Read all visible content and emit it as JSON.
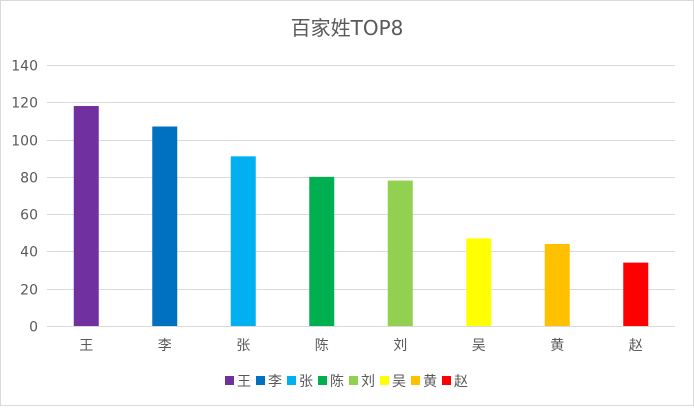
{
  "chart_data": {
    "type": "bar",
    "title": "百家姓TOP8",
    "xlabel": "",
    "ylabel": "",
    "categories": [
      "王",
      "李",
      "张",
      "陈",
      "刘",
      "吴",
      "黄",
      "赵"
    ],
    "values": [
      118,
      107,
      91,
      80,
      78,
      47,
      44,
      34
    ],
    "ylim": [
      0,
      140
    ],
    "yticks": [
      0,
      20,
      40,
      60,
      80,
      100,
      120,
      140
    ],
    "colors": [
      "#7030A0",
      "#0070C0",
      "#00B0F0",
      "#00B050",
      "#92D050",
      "#FFFF00",
      "#FFC000",
      "#FF0000"
    ],
    "grid": true,
    "legend": {
      "position": "bottom",
      "entries": [
        "王",
        "李",
        "张",
        "陈",
        "刘",
        "吴",
        "黄",
        "赵"
      ]
    }
  }
}
